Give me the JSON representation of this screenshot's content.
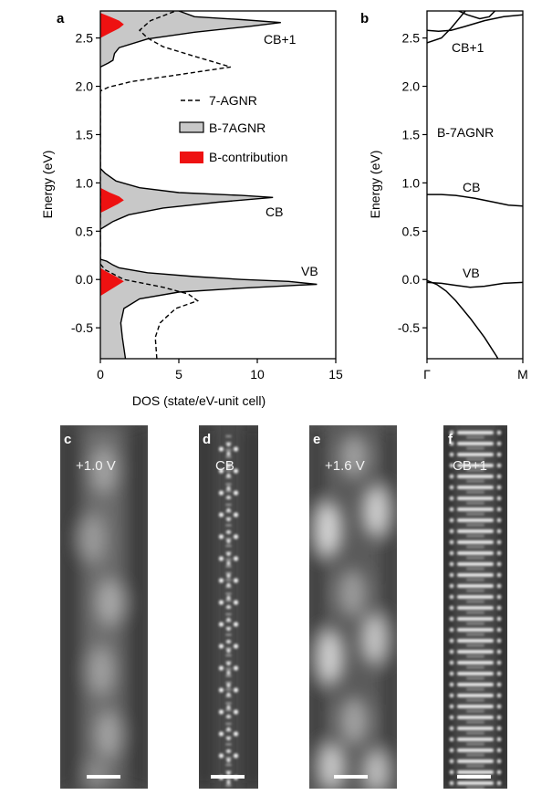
{
  "panels": {
    "a": "a",
    "b": "b",
    "c": "c",
    "d": "d",
    "e": "e",
    "f": "f"
  },
  "chart_data": [
    {
      "id": "a",
      "type": "area",
      "orientation": "horizontal-density",
      "xlabel": "DOS (state/eV-unit cell)",
      "ylabel": "Energy (eV)",
      "xlim": [
        0,
        15
      ],
      "ylim": [
        -0.82,
        2.78
      ],
      "xticks": [
        0,
        5,
        10,
        15
      ],
      "yticks": [
        -0.5,
        0.0,
        0.5,
        1.0,
        1.5,
        2.0,
        2.5
      ],
      "ytick_labels": [
        "-0.5",
        "0.0",
        "0.5",
        "1.0",
        "1.5",
        "2.0",
        "2.5"
      ],
      "legend": {
        "placement": "center-right",
        "entries": [
          "7-AGNR",
          "B-7AGNR",
          "B-contribution"
        ]
      },
      "annotations": [
        "CB+1",
        "CB",
        "VB"
      ],
      "series": [
        {
          "name": "B-7AGNR",
          "style": "filled-grey",
          "color": "#c8c8c8",
          "points": [
            [
              1.6,
              -0.82
            ],
            [
              1.4,
              -0.6
            ],
            [
              1.3,
              -0.45
            ],
            [
              1.5,
              -0.3
            ],
            [
              2.5,
              -0.2
            ],
            [
              5,
              -0.13
            ],
            [
              9,
              -0.09
            ],
            [
              12.5,
              -0.06
            ],
            [
              13.8,
              -0.05
            ],
            [
              12,
              -0.02
            ],
            [
              9,
              0.0
            ],
            [
              6,
              0.03
            ],
            [
              3,
              0.07
            ],
            [
              1.2,
              0.12
            ],
            [
              0.8,
              0.15
            ],
            [
              0.4,
              0.19
            ],
            [
              0,
              0.21
            ],
            [
              0,
              0.52
            ],
            [
              0.3,
              0.55
            ],
            [
              0.8,
              0.6
            ],
            [
              1.8,
              0.67
            ],
            [
              4,
              0.74
            ],
            [
              7.5,
              0.8
            ],
            [
              11,
              0.85
            ],
            [
              9,
              0.87
            ],
            [
              5,
              0.9
            ],
            [
              2.5,
              0.95
            ],
            [
              1,
              1.02
            ],
            [
              0.3,
              1.1
            ],
            [
              0,
              1.15
            ],
            [
              0,
              2.2
            ],
            [
              0.5,
              2.24
            ],
            [
              0.8,
              2.27
            ],
            [
              0.9,
              2.34
            ],
            [
              1.2,
              2.4
            ],
            [
              3,
              2.49
            ],
            [
              6,
              2.56
            ],
            [
              9.5,
              2.62
            ],
            [
              11.5,
              2.66
            ],
            [
              9,
              2.69
            ],
            [
              6,
              2.72
            ],
            [
              5,
              2.78
            ]
          ]
        },
        {
          "name": "7-AGNR",
          "style": "dashed",
          "color": "#000000",
          "points": [
            [
              3.6,
              -0.82
            ],
            [
              3.5,
              -0.6
            ],
            [
              3.8,
              -0.45
            ],
            [
              4.8,
              -0.3
            ],
            [
              6.2,
              -0.22
            ],
            [
              5.6,
              -0.15
            ],
            [
              4,
              -0.08
            ],
            [
              1.5,
              0.0
            ],
            [
              0.3,
              0.1
            ],
            [
              0,
              0.16
            ],
            [
              0,
              1.95
            ],
            [
              0.5,
              1.99
            ],
            [
              2,
              2.05
            ],
            [
              5,
              2.12
            ],
            [
              8.3,
              2.2
            ],
            [
              6,
              2.31
            ],
            [
              4,
              2.41
            ],
            [
              3,
              2.5
            ],
            [
              2.5,
              2.58
            ],
            [
              3.2,
              2.68
            ],
            [
              4.8,
              2.78
            ]
          ]
        },
        {
          "name": "B-contribution",
          "style": "filled-red",
          "color": "#ee1111",
          "points": [
            [
              0,
              -0.17
            ],
            [
              0.4,
              -0.13
            ],
            [
              1,
              -0.07
            ],
            [
              1.5,
              -0.02
            ],
            [
              1,
              0.03
            ],
            [
              0.4,
              0.08
            ],
            [
              0,
              0.12
            ],
            [
              0,
              0.69
            ],
            [
              0.5,
              0.73
            ],
            [
              1.1,
              0.78
            ],
            [
              1.5,
              0.82
            ],
            [
              1.2,
              0.86
            ],
            [
              0.6,
              0.9
            ],
            [
              0,
              0.95
            ],
            [
              0,
              2.5
            ],
            [
              0.6,
              2.55
            ],
            [
              1.2,
              2.6
            ],
            [
              1.5,
              2.64
            ],
            [
              1.2,
              2.68
            ],
            [
              0.6,
              2.72
            ],
            [
              0,
              2.76
            ]
          ]
        }
      ]
    },
    {
      "id": "b",
      "type": "line",
      "ylabel": "Energy (eV)",
      "xlim": [
        0,
        1
      ],
      "ylim": [
        -0.82,
        2.78
      ],
      "xtick_labels": [
        "Γ",
        "M"
      ],
      "yticks": [
        -0.5,
        0.0,
        0.5,
        1.0,
        1.5,
        2.0,
        2.5
      ],
      "ytick_labels": [
        "-0.5",
        "0.0",
        "0.5",
        "1.0",
        "1.5",
        "2.0",
        "2.5"
      ],
      "annotations": [
        "CB+1",
        "B-7AGNR",
        "CB",
        "VB"
      ],
      "series": [
        {
          "points": [
            [
              0,
              0.88
            ],
            [
              0.15,
              0.88
            ],
            [
              0.3,
              0.87
            ],
            [
              0.5,
              0.84
            ],
            [
              0.7,
              0.8
            ],
            [
              0.85,
              0.77
            ],
            [
              1,
              0.76
            ]
          ]
        },
        {
          "points": [
            [
              0,
              -0.03
            ],
            [
              0.15,
              -0.04
            ],
            [
              0.3,
              -0.06
            ],
            [
              0.45,
              -0.08
            ],
            [
              0.6,
              -0.07
            ],
            [
              0.8,
              -0.04
            ],
            [
              1,
              -0.03
            ]
          ]
        },
        {
          "points": [
            [
              0,
              -0.01
            ],
            [
              0.1,
              -0.05
            ],
            [
              0.2,
              -0.12
            ],
            [
              0.3,
              -0.22
            ],
            [
              0.45,
              -0.4
            ],
            [
              0.6,
              -0.6
            ],
            [
              0.73,
              -0.8
            ],
            [
              0.74,
              -0.82
            ]
          ]
        },
        {
          "points": [
            [
              0,
              2.58
            ],
            [
              0.12,
              2.57
            ],
            [
              0.25,
              2.58
            ],
            [
              0.4,
              2.62
            ],
            [
              0.6,
              2.68
            ],
            [
              0.8,
              2.72
            ],
            [
              1,
              2.74
            ]
          ]
        },
        {
          "points": [
            [
              0,
              2.45
            ],
            [
              0.15,
              2.5
            ],
            [
              0.25,
              2.6
            ],
            [
              0.35,
              2.72
            ],
            [
              0.4,
              2.78
            ]
          ]
        },
        {
          "points": [
            [
              0.33,
              2.78
            ],
            [
              0.42,
              2.74
            ],
            [
              0.55,
              2.7
            ],
            [
              0.65,
              2.72
            ],
            [
              0.71,
              2.78
            ]
          ]
        }
      ]
    }
  ],
  "stm_panels": [
    {
      "id": "c",
      "label": "+1.0 V",
      "type": "stm-blurry"
    },
    {
      "id": "d",
      "label": "CB",
      "type": "sim-dots"
    },
    {
      "id": "e",
      "label": "+1.6 V",
      "type": "stm-blurry"
    },
    {
      "id": "f",
      "label": "CB+1",
      "type": "sim-bars"
    }
  ]
}
